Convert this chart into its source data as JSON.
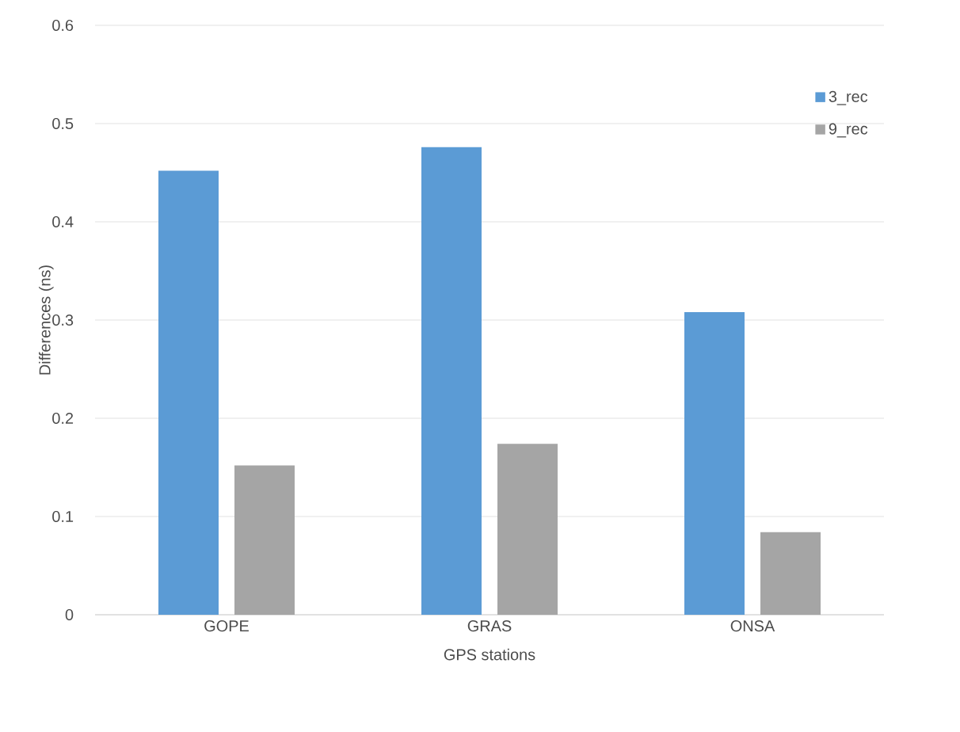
{
  "chart_data": {
    "type": "bar",
    "xlabel": "GPS stations",
    "ylabel": "Differences (ns)",
    "categories": [
      "GOPE",
      "GRAS",
      "ONSA"
    ],
    "series": [
      {
        "name": "3_rec",
        "color": "#5b9bd5",
        "values": [
          0.452,
          0.476,
          0.308
        ]
      },
      {
        "name": "9_rec",
        "color": "#a5a5a5",
        "values": [
          0.152,
          0.174,
          0.084
        ]
      }
    ],
    "ylim": [
      0,
      0.6
    ],
    "yticks": [
      0,
      0.1,
      0.2,
      0.3,
      0.4,
      0.5,
      0.6
    ],
    "grid": "y",
    "legend": "top right"
  }
}
